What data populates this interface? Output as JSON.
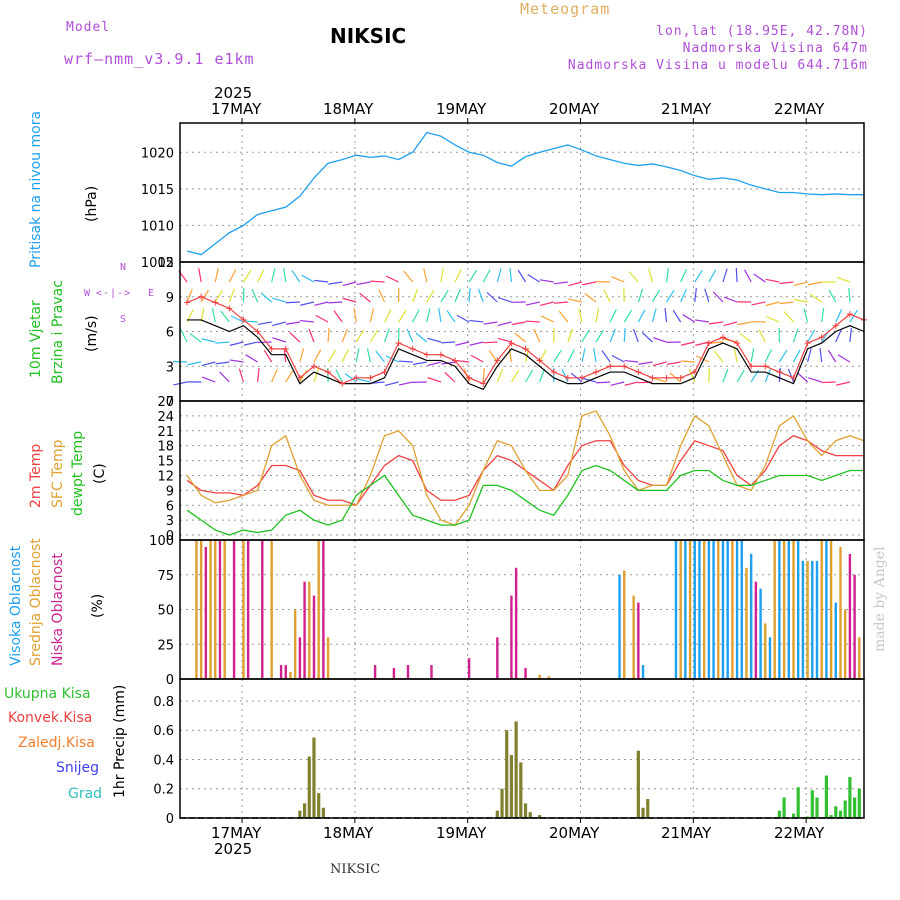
{
  "header": {
    "model_label": "Model",
    "model_name": "wrf—nmm_v3.9.1  e1km",
    "station": "NIKSIC",
    "product": "Meteogram",
    "lonlat": "lon,lat (18.95E, 42.78N)",
    "elevation": "Nadmorska Visina 647m",
    "model_elevation": "Nadmorska Visina u modelu 644.716m",
    "footer_station": "NIKSIC",
    "watermark": "made by Angel"
  },
  "axis": {
    "year": "2025",
    "day_labels": [
      "17MAY",
      "18MAY",
      "19MAY",
      "20MAY",
      "21MAY",
      "22MAY"
    ]
  },
  "panels": {
    "pressure": {
      "label": "Pritisak na nivou mora",
      "unit": "(hPa)",
      "color": "#1ea0f0"
    },
    "wind": {
      "label_a": "10m Vjetar",
      "label_b": "Brzina i Pravac",
      "unit": "(m/s)",
      "compass_w": "W",
      "compass_e": "E",
      "compass_top": "N",
      "compass_bottom": "S"
    },
    "temp": {
      "label_2m": "2m Temp",
      "label_sfc": "SFC Temp",
      "label_dew": "dewpt Temp",
      "unit": "(C)"
    },
    "cloud": {
      "label_high": "Visoka Oblacnost",
      "label_mid": "Srednja Oblacnost",
      "label_low": "Niska Oblacnost",
      "unit": "(%)"
    },
    "precip": {
      "legend": [
        "Ukupna Kisa",
        "Konvek.Kisa",
        "Zaledj.Kisa",
        "Snijeg",
        "Grad"
      ],
      "legend_colors": [
        "#30c030",
        "#f04040",
        "#f08030",
        "#4040f0",
        "#30c0c0"
      ],
      "unit": "1hr Precip (mm)"
    }
  },
  "chart_data": [
    {
      "type": "line",
      "name": "pressure",
      "ylabel": "(hPa)",
      "ylim": [
        1005,
        1024
      ],
      "yticks": [
        1005,
        1010,
        1015,
        1020
      ],
      "x_hours": [
        0,
        3,
        6,
        9,
        12,
        15,
        18,
        21,
        24,
        27,
        30,
        33,
        36,
        39,
        42,
        45,
        48,
        51,
        54,
        57,
        60,
        63,
        66,
        69,
        72,
        75,
        78,
        81,
        84,
        87,
        90,
        93,
        96,
        99,
        102,
        105,
        108,
        111,
        114,
        117,
        120,
        123,
        126,
        129,
        132,
        135,
        138,
        141,
        144
      ],
      "values": [
        1006.5,
        1006,
        1007.5,
        1009,
        1010,
        1011.5,
        1012,
        1012.5,
        1014,
        1016.5,
        1018.5,
        1019,
        1019.6,
        1019.3,
        1019.5,
        1019,
        1020,
        1022.7,
        1022.2,
        1021,
        1020,
        1019.6,
        1018.6,
        1018.1,
        1019.4,
        1020,
        1020.5,
        1021,
        1020.3,
        1019.5,
        1019,
        1018.5,
        1018.2,
        1018.4,
        1018,
        1017.5,
        1016.8,
        1016.3,
        1016.5,
        1016.2,
        1015.5,
        1015,
        1014.5,
        1014.5,
        1014.3,
        1014.2,
        1014.3,
        1014.2,
        1014.2
      ]
    },
    {
      "type": "line",
      "name": "wind",
      "ylabel": "(m/s)",
      "ylim": [
        0,
        12
      ],
      "yticks": [
        0,
        3,
        6,
        9,
        12
      ],
      "series": [
        {
          "name": "speed",
          "color": "#000000",
          "values": [
            7,
            7,
            6.5,
            6,
            6.5,
            5.5,
            4,
            4,
            1.5,
            2.5,
            2,
            1.5,
            1.5,
            1.5,
            2,
            4.5,
            4,
            3.5,
            3.5,
            3,
            1.5,
            1,
            3,
            4.5,
            4,
            3,
            2,
            1.5,
            1.5,
            2,
            2.5,
            2.5,
            2,
            1.5,
            1.5,
            1.5,
            2,
            4.5,
            5,
            4.5,
            2.5,
            2.5,
            2,
            1.5,
            4.5,
            5,
            6,
            6.5,
            6
          ]
        },
        {
          "name": "gust",
          "color": "#f04040",
          "values": [
            8.5,
            9,
            8.5,
            8,
            7,
            6,
            4.5,
            4.5,
            2,
            3,
            2.5,
            1.5,
            2,
            2,
            2.5,
            5,
            4.5,
            4,
            4,
            3.5,
            2,
            1.5,
            3.5,
            5,
            4.5,
            3.5,
            2.5,
            2,
            2,
            2.5,
            3,
            3,
            2.5,
            2,
            2,
            2,
            2.5,
            5,
            5.5,
            5,
            3,
            3,
            2.5,
            2,
            5,
            5.5,
            6.5,
            7.5,
            7
          ]
        }
      ]
    },
    {
      "type": "line",
      "name": "temperature",
      "ylabel": "(C)",
      "ylim": [
        -1,
        27
      ],
      "yticks": [
        0,
        3,
        6,
        9,
        12,
        15,
        18,
        21,
        24,
        27
      ],
      "series": [
        {
          "name": "2m Temp",
          "color": "#f04040",
          "values": [
            11,
            9,
            8.5,
            8.5,
            8,
            10,
            14,
            14,
            13,
            8,
            7,
            7,
            6,
            10,
            14,
            16,
            15,
            9,
            7,
            7,
            8,
            13,
            16,
            15,
            13,
            11,
            9,
            14,
            18,
            19,
            19,
            14,
            11,
            10,
            10,
            15,
            19,
            18,
            17,
            12,
            10,
            13,
            18,
            20,
            19,
            17,
            16,
            16,
            16
          ]
        },
        {
          "name": "SFC Temp",
          "color": "#e0a030",
          "values": [
            12,
            8,
            6.5,
            7,
            8,
            9,
            18,
            20,
            12,
            7,
            6,
            6,
            6,
            12,
            20,
            21,
            18,
            8,
            3,
            2,
            6,
            13,
            19,
            18,
            13,
            9,
            9,
            12,
            24,
            25,
            20,
            13,
            9,
            10,
            10,
            18,
            24,
            22,
            16,
            10,
            9,
            14,
            22,
            24,
            19,
            16,
            19,
            20,
            19
          ]
        },
        {
          "name": "dewpt Temp",
          "color": "#20c020",
          "values": [
            5,
            3,
            1,
            0,
            1,
            0.5,
            1,
            4,
            5,
            3,
            2,
            3,
            8,
            10,
            12,
            8,
            4,
            3,
            2,
            2,
            3,
            10,
            10,
            9,
            7,
            5,
            4,
            8,
            13,
            14,
            13,
            11,
            9,
            9,
            9,
            12,
            13,
            13,
            11,
            10,
            10,
            11,
            12,
            12,
            12,
            11,
            12,
            13,
            13
          ]
        }
      ]
    },
    {
      "type": "bar",
      "name": "cloudiness",
      "ylabel": "(%)",
      "ylim": [
        0,
        100
      ],
      "yticks": [
        0,
        25,
        50,
        75,
        100
      ],
      "series_names": [
        "Visoka Oblacnost",
        "Srednja Oblacnost",
        "Niska Oblacnost"
      ],
      "series_colors": [
        "#1ea0f0",
        "#e0a030",
        "#d02090"
      ]
    },
    {
      "type": "bar",
      "name": "precipitation",
      "ylabel": "1hr Precip (mm)",
      "ylim": [
        0,
        0.95
      ],
      "yticks": [
        0,
        0.2,
        0.4,
        0.6,
        0.8
      ],
      "x_hours": [
        24,
        25,
        26,
        27,
        28,
        29,
        30,
        31,
        66,
        67,
        68,
        69,
        70,
        71,
        72,
        73,
        74,
        75,
        96,
        97,
        98,
        99,
        126,
        127,
        128,
        129,
        130,
        131,
        132,
        133,
        134,
        135,
        136,
        137,
        138,
        139,
        140,
        141,
        142,
        143
      ],
      "values": [
        0.05,
        0.1,
        0.42,
        0.55,
        0.17,
        0.07,
        0,
        0,
        0.05,
        0.2,
        0.6,
        0.43,
        0.66,
        0.38,
        0.1,
        0.04,
        0,
        0.02,
        0.46,
        0.07,
        0.13,
        0,
        0.05,
        0.14,
        0,
        0.03,
        0.21,
        0,
        0.01,
        0.19,
        0.14,
        0,
        0.29,
        0.02,
        0.08,
        0.05,
        0.12,
        0.28,
        0.14,
        0.2
      ]
    }
  ]
}
